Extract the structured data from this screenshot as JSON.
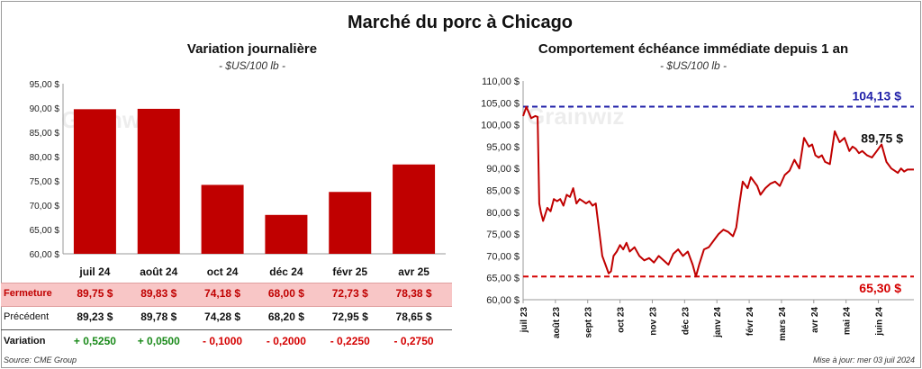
{
  "page": {
    "title": "Marché du porc à Chicago",
    "source": "Source: CME Group",
    "updated": "Mise à jour: mer 03 juil 2024",
    "watermark": "Grainwiz"
  },
  "colors": {
    "bar": "#c00000",
    "line": "#c00000",
    "high_line": "#1f1fa8",
    "low_line": "#d40000",
    "highlight_row": "#f8c6c6",
    "positive": "#1a8a1a",
    "negative": "#d40000"
  },
  "chart_data": [
    {
      "type": "bar",
      "title": "Variation journalière",
      "unit": "- $US/100 lb -",
      "categories": [
        "juil 24",
        "août 24",
        "oct 24",
        "déc 24",
        "févr 25",
        "avr 25"
      ],
      "values": [
        89.75,
        89.83,
        74.18,
        68.0,
        72.73,
        78.38
      ],
      "ylim": [
        60,
        95
      ],
      "yticks": [
        "60,00 $",
        "65,00 $",
        "70,00 $",
        "75,00 $",
        "80,00 $",
        "85,00 $",
        "90,00 $",
        "95,00 $"
      ],
      "ytick_values": [
        60,
        65,
        70,
        75,
        80,
        85,
        90,
        95
      ]
    },
    {
      "type": "line",
      "title": "Comportement échéance immédiate depuis 1 an",
      "unit": "- $US/100 lb -",
      "ylim": [
        60,
        110
      ],
      "yticks": [
        "60,00 $",
        "65,00 $",
        "70,00 $",
        "75,00 $",
        "80,00 $",
        "85,00 $",
        "90,00 $",
        "95,00 $",
        "100,00 $",
        "105,00 $",
        "110,00 $"
      ],
      "ytick_values": [
        60,
        65,
        70,
        75,
        80,
        85,
        90,
        95,
        100,
        105,
        110
      ],
      "xticks": [
        "juil 23",
        "août 23",
        "sept 23",
        "oct 23",
        "nov 23",
        "déc 23",
        "janv 24",
        "févr 24",
        "mars 24",
        "avr 24",
        "mai 24",
        "juin 24"
      ],
      "x_range": [
        0,
        12.1
      ],
      "high": {
        "value": 104.13,
        "label": "104,13 $"
      },
      "low": {
        "value": 65.3,
        "label": "65,30 $"
      },
      "last": {
        "value": 89.75,
        "label": "89,75 $"
      },
      "x": [
        0.0,
        0.1,
        0.25,
        0.38,
        0.45,
        0.5,
        0.55,
        0.62,
        0.75,
        0.85,
        0.95,
        1.05,
        1.15,
        1.25,
        1.35,
        1.45,
        1.55,
        1.65,
        1.75,
        1.85,
        1.95,
        2.05,
        2.15,
        2.25,
        2.45,
        2.55,
        2.65,
        2.72,
        2.8,
        2.9,
        3.0,
        3.1,
        3.2,
        3.3,
        3.45,
        3.6,
        3.75,
        3.9,
        4.05,
        4.2,
        4.35,
        4.5,
        4.65,
        4.8,
        4.95,
        5.1,
        5.25,
        5.35,
        5.45,
        5.6,
        5.75,
        5.9,
        6.05,
        6.2,
        6.35,
        6.5,
        6.6,
        6.7,
        6.8,
        6.95,
        7.05,
        7.15,
        7.25,
        7.35,
        7.5,
        7.65,
        7.8,
        7.95,
        8.1,
        8.25,
        8.4,
        8.55,
        8.7,
        8.85,
        8.95,
        9.05,
        9.15,
        9.25,
        9.35,
        9.5,
        9.65,
        9.8,
        9.95,
        10.1,
        10.2,
        10.3,
        10.4,
        10.5,
        10.65,
        10.8,
        10.95,
        11.1,
        11.25,
        11.4,
        11.5,
        11.6,
        11.7,
        11.8,
        11.9,
        12.0,
        12.1
      ],
      "y": [
        102.0,
        104.1,
        101.5,
        102.0,
        101.8,
        82.0,
        80.0,
        78.0,
        81.0,
        80.2,
        83.0,
        82.5,
        83.0,
        81.5,
        84.0,
        83.5,
        85.5,
        82.0,
        83.0,
        82.5,
        82.0,
        82.5,
        81.5,
        82.0,
        70.0,
        68.0,
        66.0,
        66.5,
        70.0,
        71.0,
        72.5,
        71.5,
        73.0,
        71.0,
        72.0,
        70.0,
        69.0,
        69.5,
        68.5,
        70.0,
        69.0,
        68.0,
        70.5,
        71.5,
        70.0,
        71.0,
        68.0,
        65.3,
        68.0,
        71.5,
        72.0,
        73.5,
        75.0,
        76.0,
        75.5,
        74.5,
        76.5,
        82.0,
        87.0,
        85.5,
        88.0,
        87.0,
        86.0,
        84.0,
        85.5,
        86.5,
        87.0,
        86.0,
        88.5,
        89.5,
        92.0,
        90.0,
        97.0,
        95.0,
        95.5,
        93.0,
        92.5,
        93.0,
        91.5,
        91.0,
        98.5,
        96.0,
        97.0,
        94.0,
        95.0,
        94.5,
        93.5,
        94.0,
        93.0,
        92.5,
        94.0,
        95.5,
        91.5,
        90.0,
        89.5,
        89.0,
        90.0,
        89.3,
        89.75,
        89.75,
        89.75
      ]
    }
  ],
  "table": {
    "rows": [
      {
        "label": "Fermeture",
        "cells": [
          "89,75  $",
          "89,83  $",
          "74,18  $",
          "68,00  $",
          "72,73  $",
          "78,38  $"
        ]
      },
      {
        "label": "Précédent",
        "cells": [
          "89,23  $",
          "89,78  $",
          "74,28  $",
          "68,20  $",
          "72,95  $",
          "78,65  $"
        ]
      },
      {
        "label": "Variation",
        "cells": [
          "+ 0,5250",
          "+ 0,0500",
          "- 0,1000",
          "- 0,2000",
          "- 0,2250",
          "- 0,2750"
        ]
      }
    ],
    "variation_signs": [
      "pos",
      "pos",
      "neg",
      "neg",
      "neg",
      "neg"
    ]
  }
}
